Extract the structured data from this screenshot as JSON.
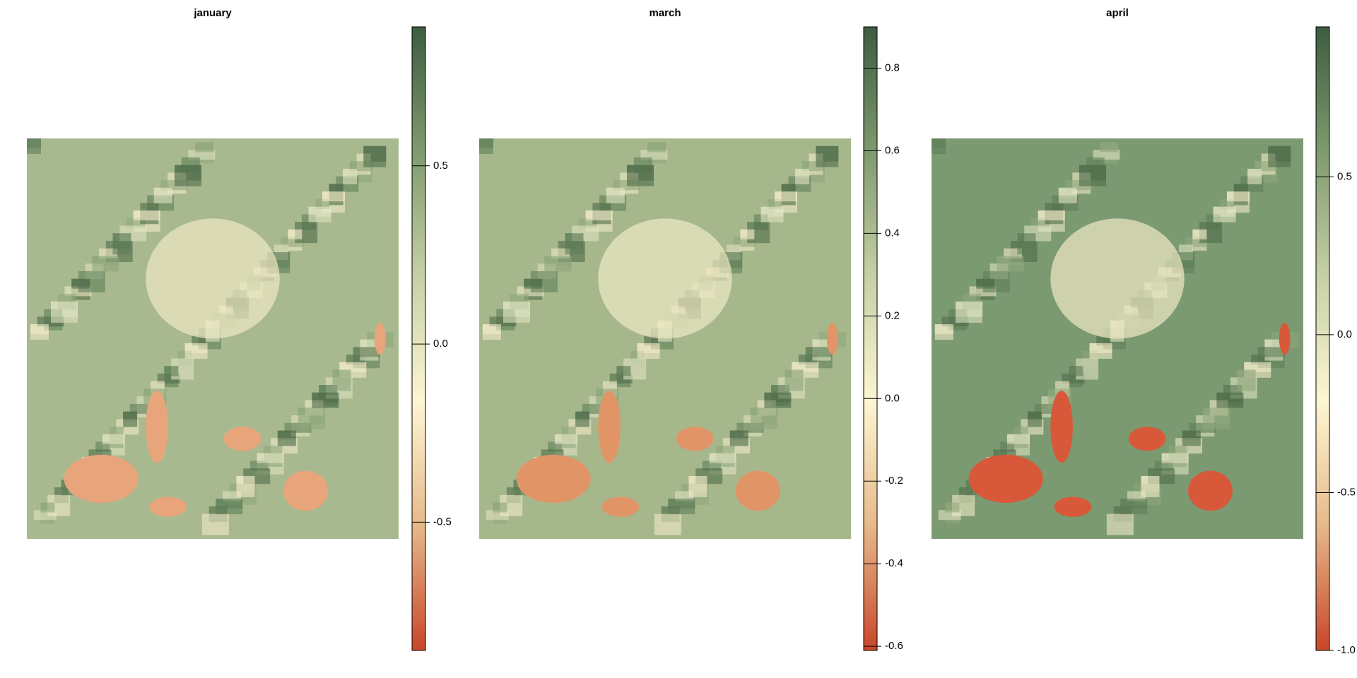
{
  "chart_data": [
    {
      "type": "raster",
      "title": "january",
      "colors": [
        "#3d5c40",
        "#7f9a6e",
        "#c6d0a6",
        "#fdf6d3",
        "#e6b98a",
        "#c8462a"
      ],
      "ylim": [
        -0.86,
        0.89
      ],
      "yticks": [
        0.5,
        {
          "value": 0,
          "label": "0.0"
        },
        -0.5
      ]
    },
    {
      "type": "raster",
      "title": "march",
      "colors": [
        "#3d5c40",
        "#7f9a6e",
        "#c6d0a6",
        "#fdf6d3",
        "#e6b98a",
        "#c8462a"
      ],
      "ylim": [
        -0.61,
        0.9
      ],
      "yticks": [
        0.8,
        0.6,
        0.4,
        0.2,
        {
          "value": 0,
          "label": "0.0"
        },
        -0.2,
        -0.4,
        -0.6
      ]
    },
    {
      "type": "raster",
      "title": "april",
      "colors": [
        "#3d5c40",
        "#7f9a6e",
        "#c6d0a6",
        "#fdf6d3",
        "#e6b98a",
        "#c8462a"
      ],
      "ylim": [
        -1.0,
        0.975
      ],
      "yticks": [
        0.5,
        {
          "value": 0,
          "label": "0.0"
        },
        -0.5,
        {
          "value": -1,
          "label": "-1.0"
        }
      ]
    }
  ]
}
